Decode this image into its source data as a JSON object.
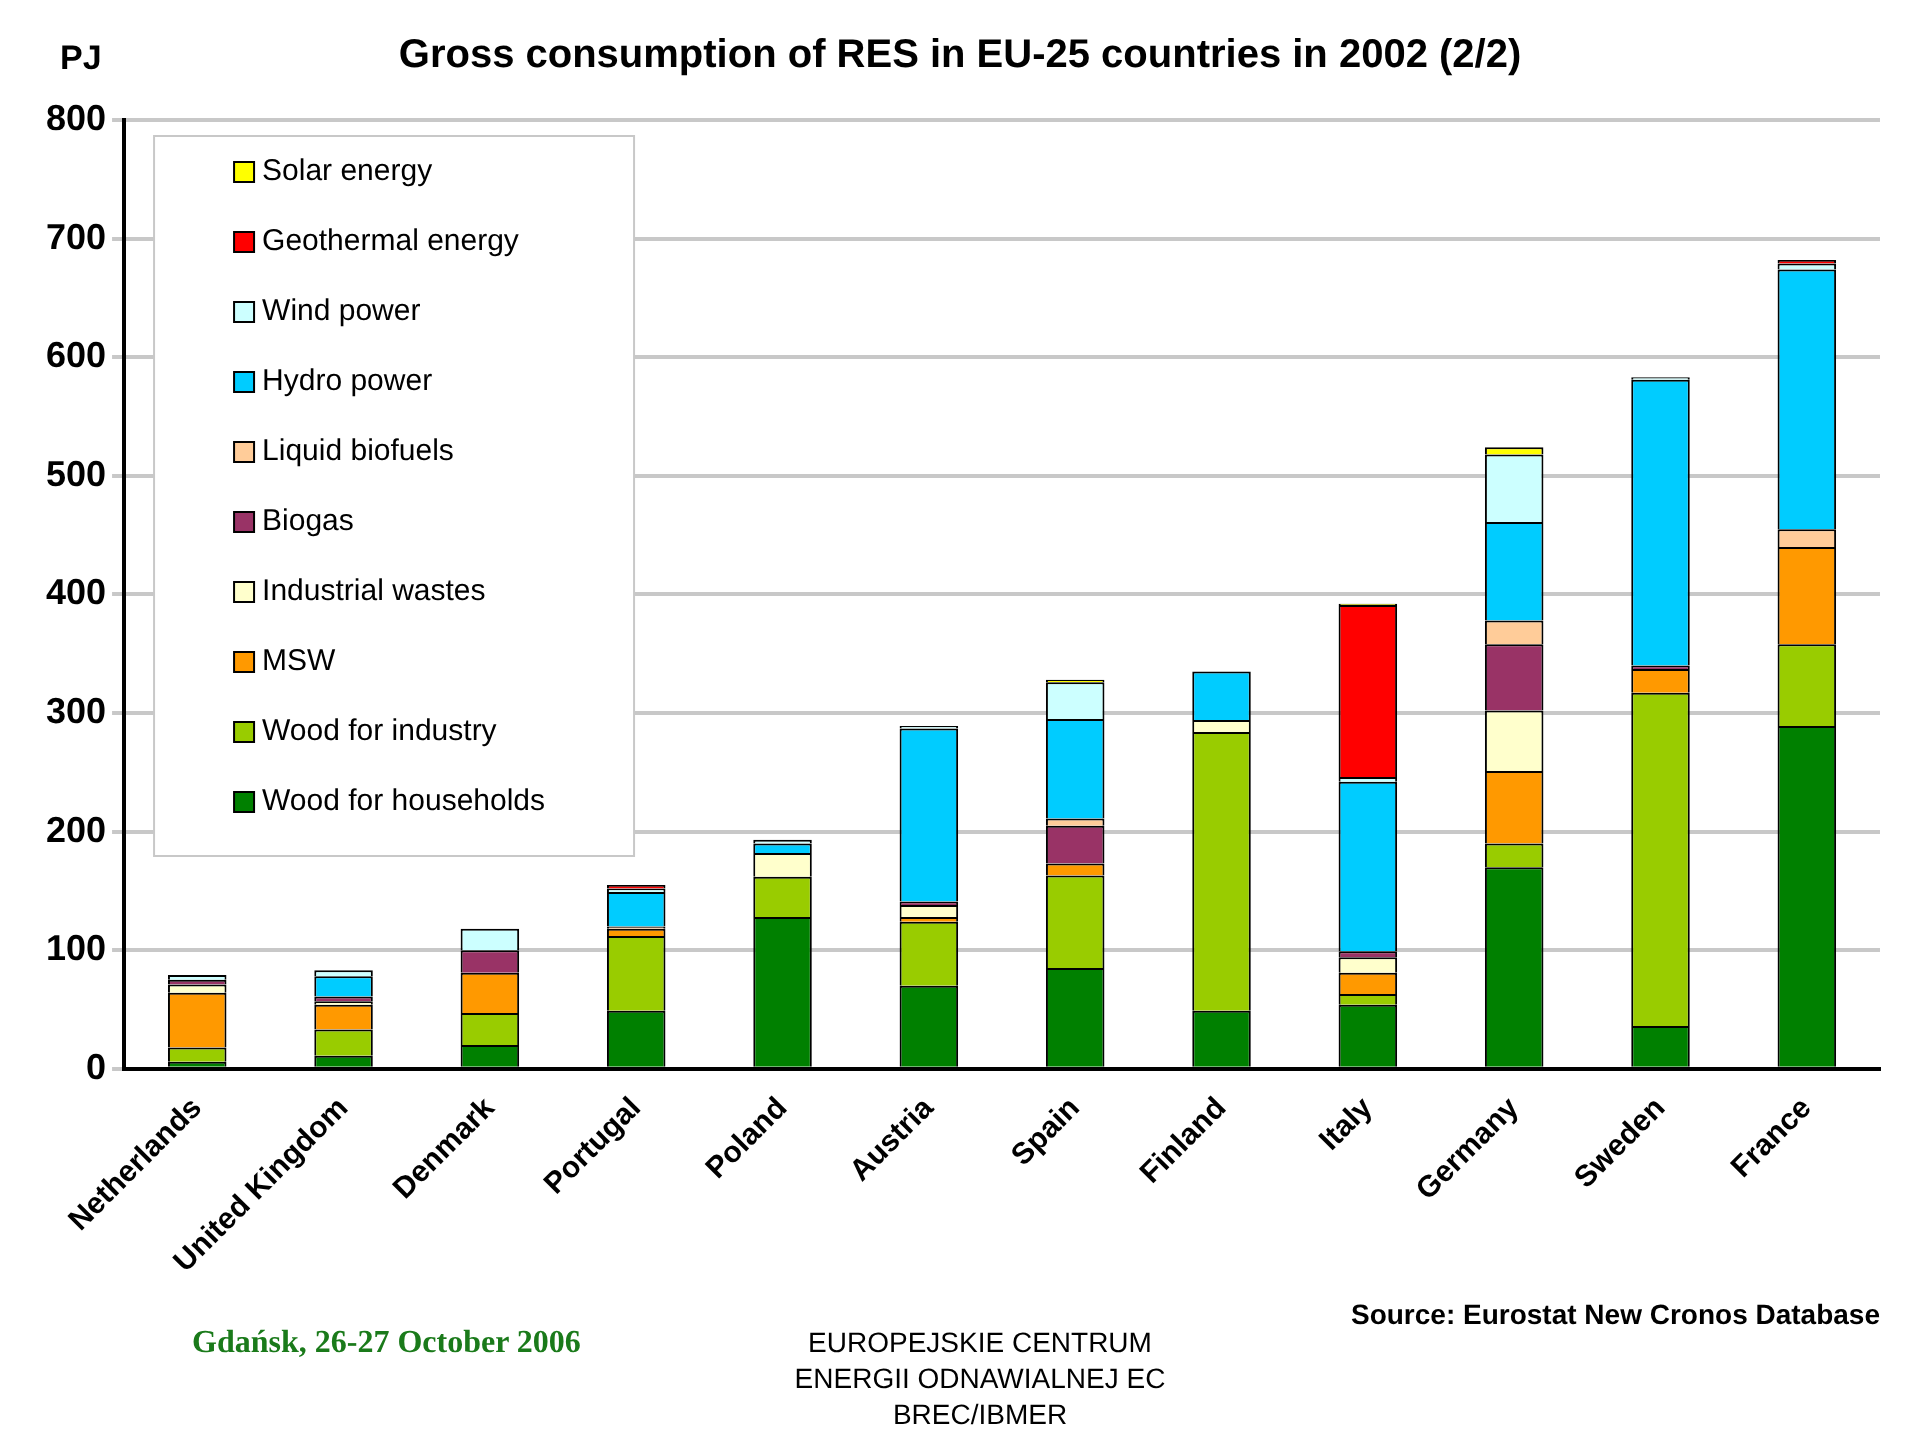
{
  "chart_data": {
    "type": "bar",
    "title": "Gross consumption of RES in EU-25 countries in 2002 (2/2)",
    "ylabel": "PJ",
    "stacked": true,
    "grid": "y",
    "legend": "top left",
    "ylim": [
      0,
      800
    ],
    "yticks": [
      0,
      100,
      200,
      300,
      400,
      500,
      600,
      700,
      800
    ],
    "categories": [
      "Netherlands",
      "United Kingdom",
      "Denmark",
      "Portugal",
      "Poland",
      "Austria",
      "Spain",
      "Finland",
      "Italy",
      "Germany",
      "Sweden",
      "France"
    ],
    "series": [
      {
        "name": "Wood for households",
        "color": "#008000",
        "values": [
          6,
          11,
          20,
          49,
          128,
          70,
          85,
          49,
          54,
          170,
          36,
          289
        ]
      },
      {
        "name": "Wood for industry",
        "color": "#99cc00",
        "values": [
          12,
          22,
          27,
          63,
          34,
          54,
          78,
          235,
          9,
          20,
          281,
          69
        ]
      },
      {
        "name": "MSW",
        "color": "#ff9900",
        "values": [
          46,
          21,
          34,
          6,
          0,
          4,
          10,
          0,
          18,
          61,
          20,
          82
        ]
      },
      {
        "name": "Industrial wastes",
        "color": "#ffffcc",
        "values": [
          7,
          3,
          0,
          0,
          20,
          10,
          0,
          10,
          13,
          51,
          0,
          0
        ]
      },
      {
        "name": "Biogas",
        "color": "#993366",
        "values": [
          4,
          4,
          19,
          0,
          0,
          3,
          32,
          0,
          5,
          56,
          3,
          0
        ]
      },
      {
        "name": "Liquid biofuels",
        "color": "#ffcc99",
        "values": [
          null,
          0,
          0,
          2,
          0,
          0,
          6,
          0,
          0,
          20,
          0,
          15
        ]
      },
      {
        "name": "Hydro power",
        "color": "#00ccff",
        "values": [
          0,
          17,
          0,
          29,
          8,
          146,
          84,
          41,
          143,
          83,
          241,
          219
        ]
      },
      {
        "name": "Wind power",
        "color": "#ccffff",
        "values": [
          4,
          5,
          18,
          3,
          3,
          2,
          31,
          0,
          4,
          57,
          2,
          5
        ]
      },
      {
        "name": "Geothermal energy",
        "color": "#ff0000",
        "values": [
          0,
          0,
          0,
          3,
          0,
          0,
          0,
          0,
          145,
          0,
          0,
          3
        ]
      },
      {
        "name": "Solar energy",
        "color": "#ffff00",
        "values": [
          0,
          0,
          0,
          0,
          0,
          0,
          2,
          0,
          1,
          6,
          0,
          0
        ]
      }
    ],
    "annotations": [
      "Source: Eurostat New Cronos Database",
      "Gdańsk, 26-27 October 2006",
      "EUROPEJSKIE CENTRUM ENERGII ODNAWIALNEJ EC BREC/IBMER"
    ]
  }
}
